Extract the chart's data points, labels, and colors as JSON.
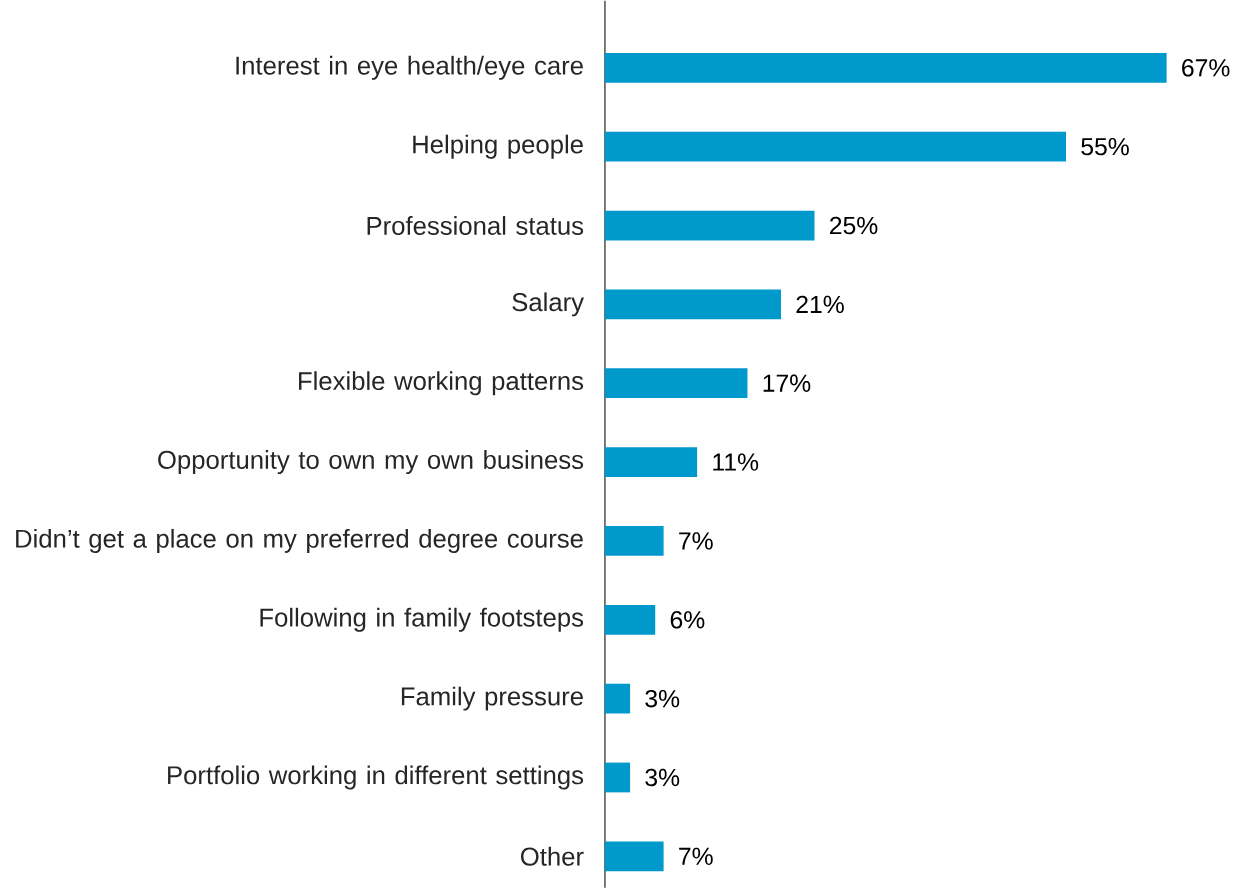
{
  "chart_data": {
    "type": "bar",
    "orientation": "horizontal",
    "color": "#0099cc",
    "categories": [
      "Interest in eye health/eye care",
      "Helping people",
      "Professional status",
      "Salary",
      "Flexible working patterns",
      "Opportunity to own my own business",
      "Didn’t get a place on my preferred degree course",
      "Following in family footsteps",
      "Family pressure",
      "Portfolio working in different settings",
      "Other"
    ],
    "values": [
      67,
      55,
      25,
      21,
      17,
      11,
      7,
      6,
      3,
      3,
      7
    ],
    "value_labels": [
      "67%",
      "55%",
      "25%",
      "21%",
      "17%",
      "11%",
      "7%",
      "6%",
      "3%",
      "3%",
      "7%"
    ]
  }
}
